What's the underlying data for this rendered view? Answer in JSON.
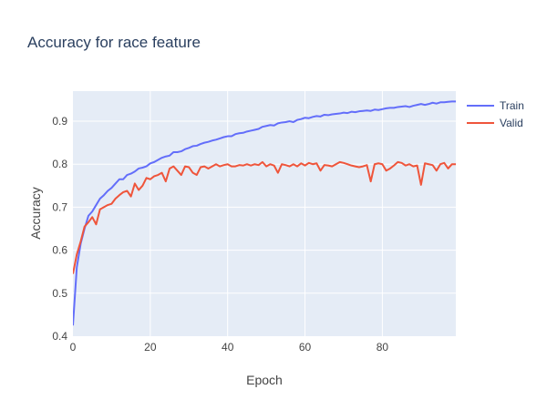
{
  "chart_data": {
    "type": "line",
    "title": "Accuracy for race feature",
    "xlabel": "Epoch",
    "ylabel": "Accuracy",
    "xlim": [
      0,
      99
    ],
    "ylim": [
      0.4,
      0.97
    ],
    "x_ticks": [
      0,
      20,
      40,
      60,
      80
    ],
    "y_ticks": [
      0.4,
      0.5,
      0.6,
      0.7,
      0.8,
      0.9
    ],
    "grid": true,
    "legend_position": "top-right",
    "series": [
      {
        "name": "Train",
        "color": "#636efa",
        "x": [
          0,
          1,
          2,
          3,
          4,
          5,
          6,
          7,
          8,
          9,
          10,
          11,
          12,
          13,
          14,
          15,
          16,
          17,
          18,
          19,
          20,
          21,
          22,
          23,
          24,
          25,
          26,
          27,
          28,
          29,
          30,
          31,
          32,
          33,
          34,
          35,
          36,
          37,
          38,
          39,
          40,
          41,
          42,
          43,
          44,
          45,
          46,
          47,
          48,
          49,
          50,
          51,
          52,
          53,
          54,
          55,
          56,
          57,
          58,
          59,
          60,
          61,
          62,
          63,
          64,
          65,
          66,
          67,
          68,
          69,
          70,
          71,
          72,
          73,
          74,
          75,
          76,
          77,
          78,
          79,
          80,
          81,
          82,
          83,
          84,
          85,
          86,
          87,
          88,
          89,
          90,
          91,
          92,
          93,
          94,
          95,
          96,
          97,
          98,
          99
        ],
        "values": [
          0.425,
          0.56,
          0.615,
          0.65,
          0.68,
          0.69,
          0.705,
          0.72,
          0.728,
          0.738,
          0.745,
          0.755,
          0.765,
          0.765,
          0.775,
          0.778,
          0.783,
          0.79,
          0.792,
          0.795,
          0.802,
          0.805,
          0.81,
          0.815,
          0.818,
          0.82,
          0.828,
          0.828,
          0.83,
          0.835,
          0.838,
          0.842,
          0.843,
          0.847,
          0.85,
          0.852,
          0.855,
          0.857,
          0.86,
          0.863,
          0.865,
          0.865,
          0.87,
          0.872,
          0.873,
          0.876,
          0.878,
          0.88,
          0.882,
          0.887,
          0.889,
          0.891,
          0.89,
          0.895,
          0.897,
          0.898,
          0.9,
          0.898,
          0.903,
          0.905,
          0.908,
          0.907,
          0.91,
          0.912,
          0.911,
          0.915,
          0.914,
          0.916,
          0.917,
          0.918,
          0.92,
          0.919,
          0.922,
          0.921,
          0.923,
          0.924,
          0.925,
          0.924,
          0.927,
          0.926,
          0.928,
          0.93,
          0.931,
          0.931,
          0.933,
          0.934,
          0.935,
          0.933,
          0.936,
          0.938,
          0.94,
          0.938,
          0.94,
          0.943,
          0.941,
          0.944,
          0.944,
          0.945,
          0.946,
          0.946
        ]
      },
      {
        "name": "Valid",
        "color": "#ef553b",
        "x": [
          0,
          1,
          2,
          3,
          4,
          5,
          6,
          7,
          8,
          9,
          10,
          11,
          12,
          13,
          14,
          15,
          16,
          17,
          18,
          19,
          20,
          21,
          22,
          23,
          24,
          25,
          26,
          27,
          28,
          29,
          30,
          31,
          32,
          33,
          34,
          35,
          36,
          37,
          38,
          39,
          40,
          41,
          42,
          43,
          44,
          45,
          46,
          47,
          48,
          49,
          50,
          51,
          52,
          53,
          54,
          55,
          56,
          57,
          58,
          59,
          60,
          61,
          62,
          63,
          64,
          65,
          66,
          67,
          68,
          69,
          70,
          71,
          72,
          73,
          74,
          75,
          76,
          77,
          78,
          79,
          80,
          81,
          82,
          83,
          84,
          85,
          86,
          87,
          88,
          89,
          90,
          91,
          92,
          93,
          94,
          95,
          96,
          97,
          98,
          99
        ],
        "values": [
          0.545,
          0.59,
          0.62,
          0.655,
          0.665,
          0.677,
          0.66,
          0.695,
          0.7,
          0.705,
          0.708,
          0.72,
          0.728,
          0.735,
          0.738,
          0.725,
          0.755,
          0.74,
          0.75,
          0.768,
          0.765,
          0.772,
          0.775,
          0.78,
          0.76,
          0.79,
          0.795,
          0.785,
          0.775,
          0.795,
          0.793,
          0.78,
          0.775,
          0.793,
          0.795,
          0.79,
          0.795,
          0.8,
          0.795,
          0.798,
          0.8,
          0.795,
          0.795,
          0.798,
          0.797,
          0.8,
          0.797,
          0.8,
          0.798,
          0.805,
          0.795,
          0.8,
          0.797,
          0.78,
          0.8,
          0.798,
          0.795,
          0.8,
          0.795,
          0.802,
          0.797,
          0.803,
          0.8,
          0.802,
          0.785,
          0.798,
          0.797,
          0.795,
          0.8,
          0.805,
          0.803,
          0.8,
          0.797,
          0.795,
          0.793,
          0.795,
          0.798,
          0.76,
          0.8,
          0.802,
          0.8,
          0.785,
          0.79,
          0.797,
          0.805,
          0.803,
          0.797,
          0.8,
          0.795,
          0.797,
          0.752,
          0.802,
          0.8,
          0.798,
          0.785,
          0.8,
          0.803,
          0.79,
          0.8,
          0.8
        ]
      }
    ]
  }
}
